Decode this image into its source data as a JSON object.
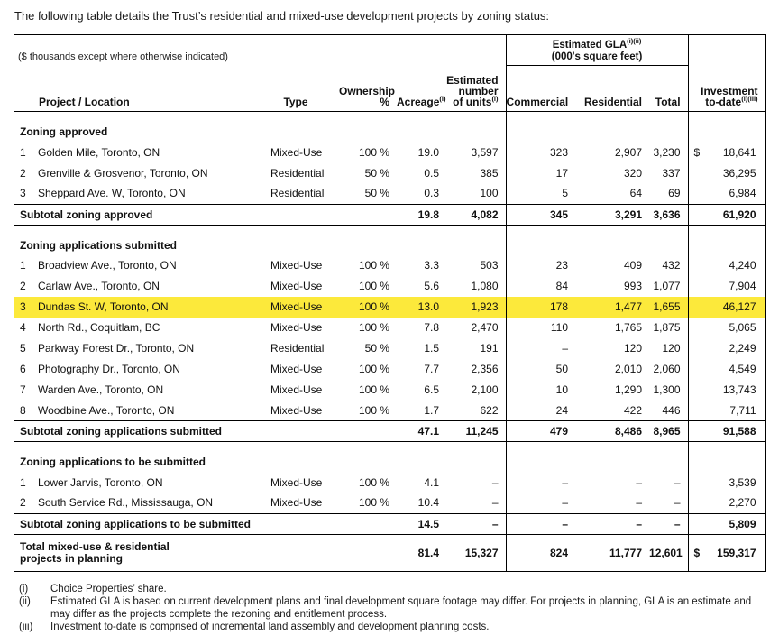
{
  "intro": "The following table details the Trust’s residential and mixed-use development projects by zoning status:",
  "colors": {
    "highlight": "#fce93b",
    "border": "#000000",
    "text": "#111111"
  },
  "table": {
    "note": "($ thousands except where otherwise indicated)",
    "gla": {
      "title": "Estimated GLA",
      "title_sup": "(i)(ii)",
      "subtitle": "(000's square feet)"
    },
    "headers": {
      "project": "Project / Location",
      "type": "Type",
      "ownership": "Ownership %",
      "acreage": "Acreage",
      "acreage_sup": "(i)",
      "units_l1": "Estimated",
      "units_l2": "number",
      "units_l3": "of units",
      "units_sup": "(i)",
      "commercial": "Commercial",
      "residential": "Residential",
      "total": "Total",
      "investment_l1": "Investment",
      "investment_l2": "to-date",
      "investment_sup": "(i)(iii)"
    },
    "sections": [
      {
        "title": "Zoning approved",
        "rows": [
          {
            "num": "1",
            "name": "Golden Mile, Toronto, ON",
            "type": "Mixed-Use",
            "ownership": "100 %",
            "acreage": "19.0",
            "units": "3,597",
            "commercial": "323",
            "residential": "2,907",
            "total": "3,230",
            "dollar": "$",
            "investment": "18,641"
          },
          {
            "num": "2",
            "name": "Grenville & Grosvenor, Toronto, ON",
            "type": "Residential",
            "ownership": "50 %",
            "acreage": "0.5",
            "units": "385",
            "commercial": "17",
            "residential": "320",
            "total": "337",
            "dollar": "",
            "investment": "36,295"
          },
          {
            "num": "3",
            "name": "Sheppard Ave. W, Toronto, ON",
            "type": "Residential",
            "ownership": "50 %",
            "acreage": "0.3",
            "units": "100",
            "commercial": "5",
            "residential": "64",
            "total": "69",
            "dollar": "",
            "investment": "6,984"
          }
        ],
        "subtotal": {
          "label": "Subtotal zoning approved",
          "acreage": "19.8",
          "units": "4,082",
          "commercial": "345",
          "residential": "3,291",
          "total": "3,636",
          "dollar": "",
          "investment": "61,920"
        }
      },
      {
        "title": "Zoning applications submitted",
        "rows": [
          {
            "num": "1",
            "name": "Broadview Ave., Toronto, ON",
            "type": "Mixed-Use",
            "ownership": "100 %",
            "acreage": "3.3",
            "units": "503",
            "commercial": "23",
            "residential": "409",
            "total": "432",
            "dollar": "",
            "investment": "4,240"
          },
          {
            "num": "2",
            "name": "Carlaw Ave., Toronto, ON",
            "type": "Mixed-Use",
            "ownership": "100 %",
            "acreage": "5.6",
            "units": "1,080",
            "commercial": "84",
            "residential": "993",
            "total": "1,077",
            "dollar": "",
            "investment": "7,904"
          },
          {
            "num": "3",
            "name": "Dundas St. W, Toronto, ON",
            "type": "Mixed-Use",
            "ownership": "100 %",
            "acreage": "13.0",
            "units": "1,923",
            "commercial": "178",
            "residential": "1,477",
            "total": "1,655",
            "dollar": "",
            "investment": "46,127",
            "highlight": true
          },
          {
            "num": "4",
            "name": "North Rd., Coquitlam, BC",
            "type": "Mixed-Use",
            "ownership": "100 %",
            "acreage": "7.8",
            "units": "2,470",
            "commercial": "110",
            "residential": "1,765",
            "total": "1,875",
            "dollar": "",
            "investment": "5,065"
          },
          {
            "num": "5",
            "name": "Parkway Forest Dr., Toronto, ON",
            "type": "Residential",
            "ownership": "50 %",
            "acreage": "1.5",
            "units": "191",
            "commercial": "–",
            "residential": "120",
            "total": "120",
            "dollar": "",
            "investment": "2,249"
          },
          {
            "num": "6",
            "name": "Photography Dr., Toronto, ON",
            "type": "Mixed-Use",
            "ownership": "100 %",
            "acreage": "7.7",
            "units": "2,356",
            "commercial": "50",
            "residential": "2,010",
            "total": "2,060",
            "dollar": "",
            "investment": "4,549"
          },
          {
            "num": "7",
            "name": "Warden Ave., Toronto, ON",
            "type": "Mixed-Use",
            "ownership": "100 %",
            "acreage": "6.5",
            "units": "2,100",
            "commercial": "10",
            "residential": "1,290",
            "total": "1,300",
            "dollar": "",
            "investment": "13,743"
          },
          {
            "num": "8",
            "name": "Woodbine Ave., Toronto, ON",
            "type": "Mixed-Use",
            "ownership": "100 %",
            "acreage": "1.7",
            "units": "622",
            "commercial": "24",
            "residential": "422",
            "total": "446",
            "dollar": "",
            "investment": "7,711"
          }
        ],
        "subtotal": {
          "label": "Subtotal zoning applications submitted",
          "acreage": "47.1",
          "units": "11,245",
          "commercial": "479",
          "residential": "8,486",
          "total": "8,965",
          "dollar": "",
          "investment": "91,588"
        }
      },
      {
        "title": "Zoning applications to be submitted",
        "rows": [
          {
            "num": "1",
            "name": "Lower Jarvis, Toronto, ON",
            "type": "Mixed-Use",
            "ownership": "100 %",
            "acreage": "4.1",
            "units": "–",
            "commercial": "–",
            "residential": "–",
            "total": "–",
            "dollar": "",
            "investment": "3,539"
          },
          {
            "num": "2",
            "name": "South Service Rd., Mississauga, ON",
            "type": "Mixed-Use",
            "ownership": "100 %",
            "acreage": "10.4",
            "units": "–",
            "commercial": "–",
            "residential": "–",
            "total": "–",
            "dollar": "",
            "investment": "2,270"
          }
        ],
        "subtotal": {
          "label": "Subtotal zoning applications to be submitted",
          "acreage": "14.5",
          "units": "–",
          "commercial": "–",
          "residential": "–",
          "total": "–",
          "dollar": "",
          "investment": "5,809"
        }
      }
    ],
    "total": {
      "label_l1": "Total mixed-use & residential",
      "label_l2": "projects in planning",
      "acreage": "81.4",
      "units": "15,327",
      "commercial": "824",
      "residential": "11,777",
      "total": "12,601",
      "dollar": "$",
      "investment": "159,317"
    }
  },
  "footnotes": [
    {
      "marker": "(i)",
      "text": "Choice Properties’ share."
    },
    {
      "marker": "(ii)",
      "text": "Estimated GLA is based on current development plans and final development square footage may differ. For projects in planning, GLA is an estimate and may differ as the projects complete the rezoning and entitlement process."
    },
    {
      "marker": "(iii)",
      "text": "Investment to-date is comprised of incremental land assembly and development planning costs."
    }
  ]
}
